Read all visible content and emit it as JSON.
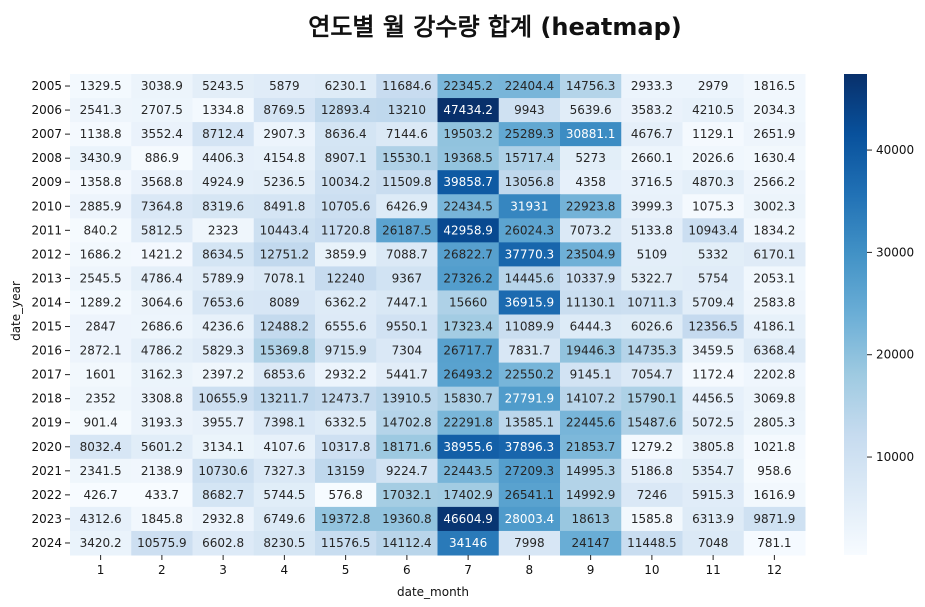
{
  "chart_data": {
    "type": "heatmap",
    "title": "연도별 월 강수량 합계 (heatmap)",
    "xlabel": "date_month",
    "ylabel": "date_year",
    "colormap": "Blues",
    "colors": {
      "low": "#f7fbff",
      "high": "#08306b"
    },
    "x": [
      "1",
      "2",
      "3",
      "4",
      "5",
      "6",
      "7",
      "8",
      "9",
      "10",
      "11",
      "12"
    ],
    "y": [
      "2005",
      "2006",
      "2007",
      "2008",
      "2009",
      "2010",
      "2011",
      "2012",
      "2013",
      "2014",
      "2015",
      "2016",
      "2017",
      "2018",
      "2019",
      "2020",
      "2021",
      "2022",
      "2023",
      "2024"
    ],
    "values": [
      [
        1329.5,
        3038.9,
        5243.5,
        5879,
        6230.1,
        11684.6,
        22345.2,
        22404.4,
        14756.3,
        2933.3,
        2979,
        1816.5
      ],
      [
        2541.3,
        2707.5,
        1334.8,
        8769.5,
        12893.4,
        13210,
        47434.2,
        9943,
        5639.6,
        3583.2,
        4210.5,
        2034.3
      ],
      [
        1138.8,
        3552.4,
        8712.4,
        2907.3,
        8636.4,
        7144.6,
        19503.2,
        25289.3,
        30881.1,
        4676.7,
        1129.1,
        2651.9
      ],
      [
        3430.9,
        886.9,
        4406.3,
        4154.8,
        8907.1,
        15530.1,
        19368.5,
        15717.4,
        5273,
        2660.1,
        2026.6,
        1630.4
      ],
      [
        1358.8,
        3568.8,
        4924.9,
        5236.5,
        10034.2,
        11509.8,
        39858.7,
        13056.8,
        4358,
        3716.5,
        4870.3,
        2566.2
      ],
      [
        2885.9,
        7364.8,
        8319.6,
        8491.8,
        10705.6,
        6426.9,
        22434.5,
        31931,
        22923.8,
        3999.3,
        1075.3,
        3002.3
      ],
      [
        840.2,
        5812.5,
        2323,
        10443.4,
        11720.8,
        26187.5,
        42958.9,
        26024.3,
        7073.2,
        5133.8,
        10943.4,
        1834.2
      ],
      [
        1686.2,
        1421.2,
        8634.5,
        12751.2,
        3859.9,
        7088.7,
        26822.7,
        37770.3,
        23504.9,
        5109,
        5332,
        6170.1
      ],
      [
        2545.5,
        4786.4,
        5789.9,
        7078.1,
        12240,
        9367,
        27326.2,
        14445.6,
        10337.9,
        5322.7,
        5754,
        2053.1
      ],
      [
        1289.2,
        3064.6,
        7653.6,
        8089,
        6362.2,
        7447.1,
        15660,
        36915.9,
        11130.1,
        10711.3,
        5709.4,
        2583.8
      ],
      [
        2847,
        2686.6,
        4236.6,
        12488.2,
        6555.6,
        9550.1,
        17323.4,
        11089.9,
        6444.3,
        6026.6,
        12356.5,
        4186.1
      ],
      [
        2872.1,
        4786.2,
        5829.3,
        15369.8,
        9715.9,
        7304,
        26717.7,
        7831.7,
        19446.3,
        14735.3,
        3459.5,
        6368.4
      ],
      [
        1601,
        3162.3,
        2397.2,
        6853.6,
        2932.2,
        5441.7,
        26493.2,
        22550.2,
        9145.1,
        7054.7,
        1172.4,
        2202.8
      ],
      [
        2352,
        3308.8,
        10655.9,
        13211.7,
        12473.7,
        13910.5,
        15830.7,
        27791.9,
        14107.2,
        15790.1,
        4456.5,
        3069.8
      ],
      [
        901.4,
        3193.3,
        3955.7,
        7398.1,
        6332.5,
        14702.8,
        22291.8,
        13585.1,
        22445.6,
        15487.6,
        5072.5,
        2805.3
      ],
      [
        8032.4,
        5601.2,
        3134.1,
        4107.6,
        10317.8,
        18171.6,
        38955.6,
        37896.3,
        21853.7,
        1279.2,
        3805.8,
        1021.8
      ],
      [
        2341.5,
        2138.9,
        10730.6,
        7327.3,
        13159,
        9224.7,
        22443.5,
        27209.3,
        14995.3,
        5186.8,
        5354.7,
        958.6
      ],
      [
        426.7,
        433.7,
        8682.7,
        5744.5,
        576.8,
        17032.1,
        17402.9,
        26541.1,
        14992.9,
        7246,
        5915.3,
        1616.9
      ],
      [
        4312.6,
        1845.8,
        2932.8,
        6749.6,
        19372.8,
        19360.8,
        46604.9,
        28003.4,
        18613,
        1585.8,
        6313.9,
        9871.9
      ],
      [
        3420.2,
        10575.9,
        6602.8,
        8230.5,
        11576.5,
        14112.4,
        34146,
        7998,
        24147,
        11448.5,
        7048,
        781.1
      ]
    ],
    "colorbar": {
      "range": [
        426.7,
        47434.2
      ],
      "ticks": [
        10000,
        20000,
        30000,
        40000
      ],
      "tick_labels": [
        "10000",
        "20000",
        "30000",
        "40000"
      ]
    }
  }
}
